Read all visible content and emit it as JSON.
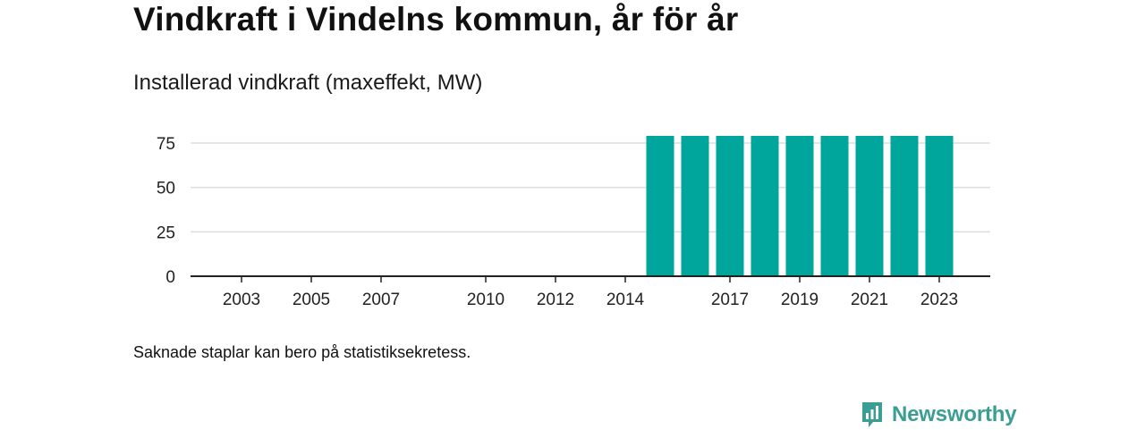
{
  "header": {
    "title": "Vindkraft i Vindelns kommun, år för år",
    "subtitle": "Installerad vindkraft (maxeffekt, MW)"
  },
  "footer": {
    "note": "Saknade staplar kan bero på statistiksekretess.",
    "brand": "Newsworthy",
    "brand_icon": "newsworthy-logo-icon"
  },
  "colors": {
    "bar": "#00a59b",
    "grid": "#dddddd",
    "axis": "#222222",
    "brand": "#3b9e95"
  },
  "chart_data": {
    "type": "bar",
    "title": "Installerad vindkraft (maxeffekt, MW)",
    "xlabel": "",
    "ylabel": "",
    "categories": [
      "2002",
      "2003",
      "2004",
      "2005",
      "2006",
      "2007",
      "2008",
      "2009",
      "2010",
      "2011",
      "2012",
      "2013",
      "2014",
      "2015",
      "2016",
      "2017",
      "2018",
      "2019",
      "2020",
      "2021",
      "2022",
      "2023"
    ],
    "values": [
      null,
      null,
      null,
      null,
      null,
      null,
      null,
      null,
      null,
      null,
      null,
      null,
      null,
      79,
      79,
      79,
      79,
      79,
      79,
      79,
      79,
      79
    ],
    "x_tick_labels": [
      "2003",
      "2005",
      "2007",
      "2010",
      "2012",
      "2014",
      "2017",
      "2019",
      "2021",
      "2023"
    ],
    "y_ticks": [
      0,
      25,
      50,
      75
    ],
    "ylim": [
      0,
      80
    ],
    "grid": true,
    "legend": "none"
  }
}
